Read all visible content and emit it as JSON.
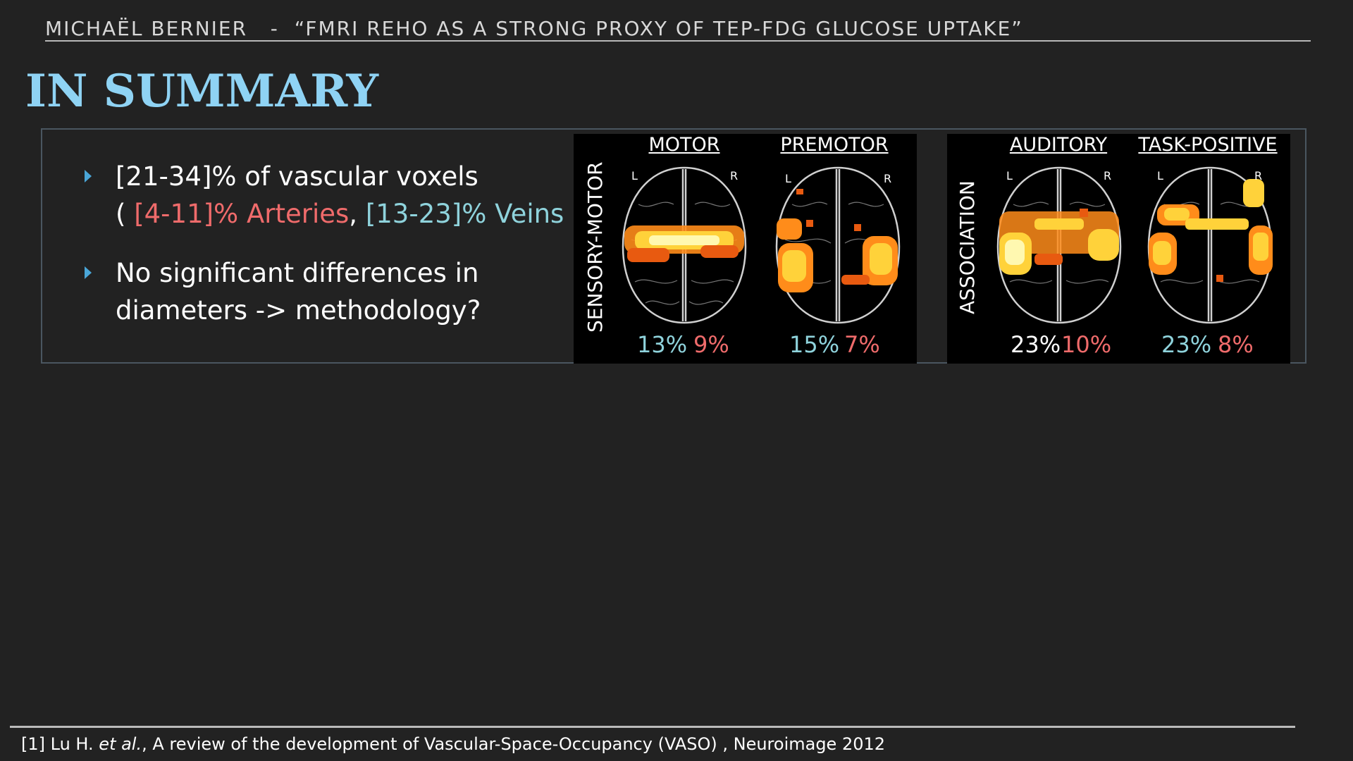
{
  "header": {
    "author": "MICHAËL BERNIER",
    "separator": "-",
    "talk_title": "“FMRI REHO AS A STRONG PROXY OF TEP-FDG GLUCOSE UPTAKE”"
  },
  "title": "IN SUMMARY",
  "bullets": [
    {
      "line1": "[21-34]% of vascular voxels",
      "open": "( ",
      "arteries": "[4-11]% Arteries",
      "comma": ",  ",
      "veins": "[13-23]% Veins",
      "close": " )"
    },
    {
      "line1": "No significant differences in",
      "line2": "diameters -> methodology?"
    }
  ],
  "figure": {
    "panels": [
      {
        "group": "SENSORY-MOTOR",
        "regions": [
          {
            "name": "MOTOR",
            "vein_pct": "13%",
            "artery_pct": "9%"
          },
          {
            "name": "PREMOTOR",
            "vein_pct": "15%",
            "artery_pct": "7%"
          }
        ]
      },
      {
        "group": "ASSOCIATION",
        "regions": [
          {
            "name": "AUDITORY",
            "vein_pct": "23%",
            "artery_pct": "10%"
          },
          {
            "name": "TASK-POSITIVE",
            "vein_pct": "23%",
            "artery_pct": "8%"
          }
        ]
      }
    ],
    "left_label": "L",
    "right_label": "R"
  },
  "footer": {
    "ref": "[1] Lu H. ",
    "etal": "et al.",
    "rest": ", A review of the development of Vascular-Space-Occupancy (VASO) , Neuroimage 2012"
  },
  "colors": {
    "title": "#8fd3f4",
    "arteries": "#ef6b6b",
    "veins": "#8fd3dc",
    "bullet_arrow": "#4aa6d8"
  }
}
